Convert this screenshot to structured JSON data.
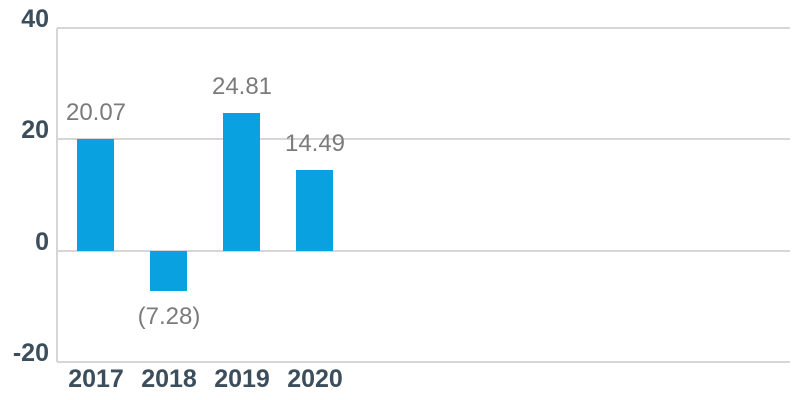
{
  "chart_data": {
    "type": "bar",
    "categories": [
      "2017",
      "2018",
      "2019",
      "2020"
    ],
    "values": [
      20.07,
      -7.28,
      24.81,
      14.49
    ],
    "value_labels": [
      "20.07",
      "(7.28)",
      "24.81",
      "14.49"
    ],
    "title": "",
    "xlabel": "",
    "ylabel": "",
    "ylim": [
      -20,
      40
    ],
    "yticks": [
      40,
      20,
      0,
      -20
    ],
    "ytick_labels": [
      "40",
      "20",
      "0",
      "-20"
    ],
    "grid": "horizontal-only",
    "legend": "none",
    "series_name": ""
  },
  "colors": {
    "bar": "#0aa1e0",
    "axis_text": "#3c4e5c",
    "data_label": "#7b7b7b",
    "gridline": "#d6d6d6",
    "background": "#ffffff"
  }
}
